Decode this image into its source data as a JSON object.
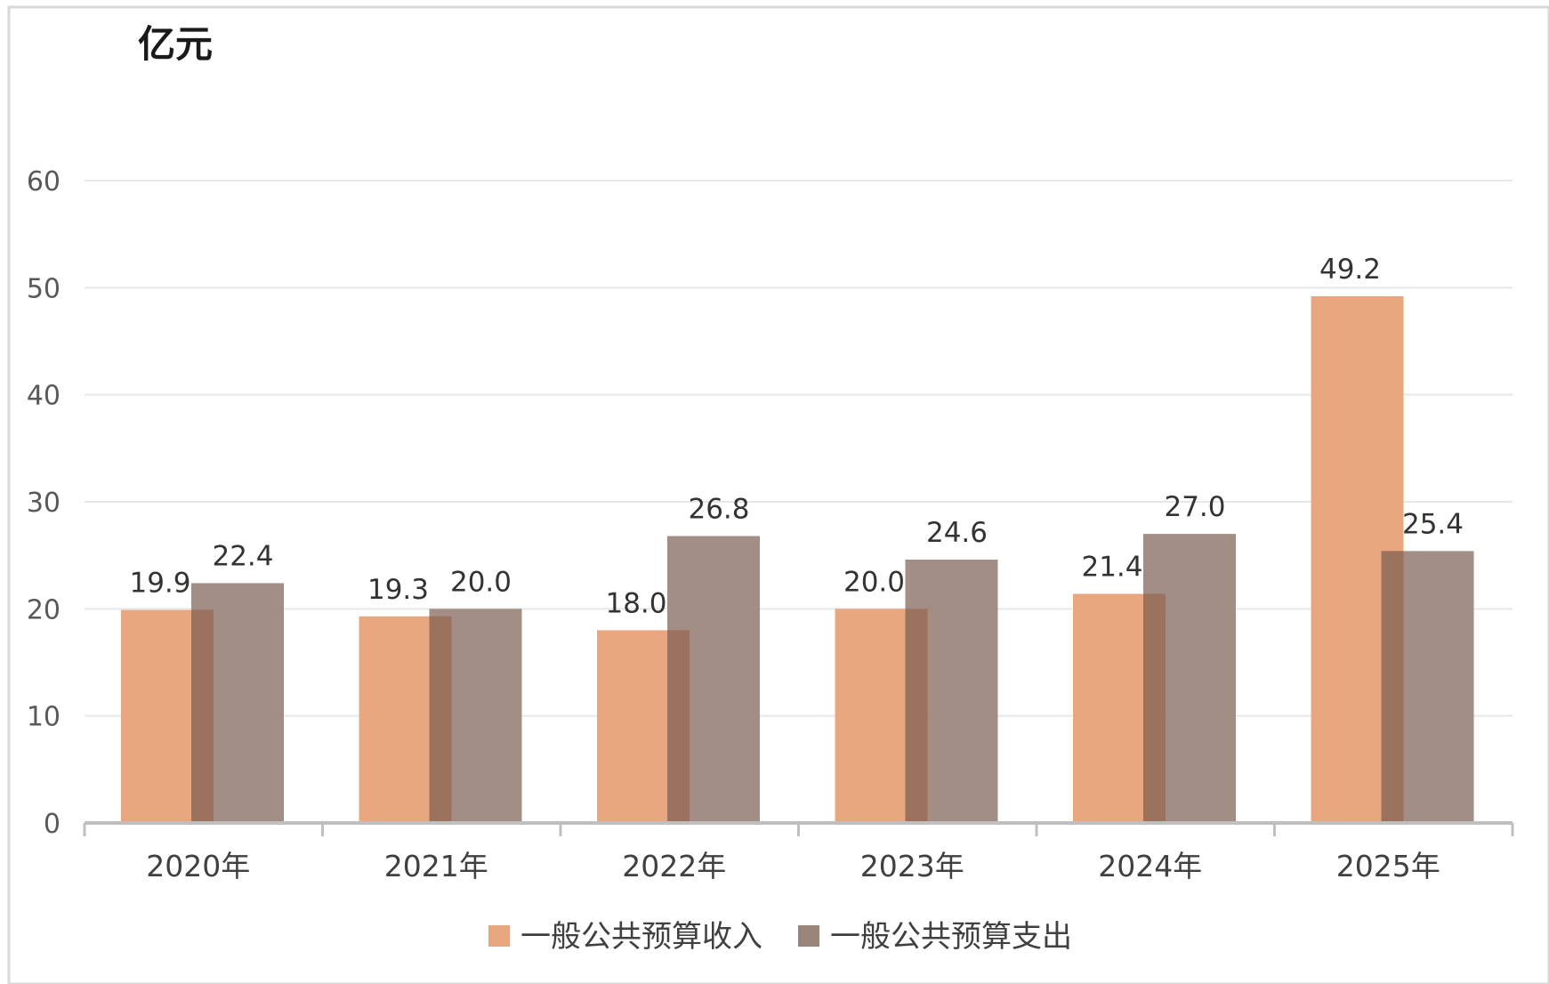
{
  "chart_data": {
    "type": "bar",
    "ylabel": "亿元",
    "ylim": [
      0,
      60
    ],
    "yticks": [
      "0",
      "10",
      "20",
      "30",
      "40",
      "50",
      "60"
    ],
    "ytick_values": [
      0,
      10,
      20,
      30,
      40,
      50,
      60
    ],
    "categories": [
      "2020年",
      "2021年",
      "2022年",
      "2023年",
      "2024年",
      "2025年"
    ],
    "series": [
      {
        "name": "一般公共预算收入",
        "color": "#E9A77F",
        "values": [
          19.9,
          19.3,
          18.0,
          20.0,
          21.4,
          49.2
        ],
        "labels": [
          "19.9",
          "19.3",
          "18.0",
          "20.0",
          "21.4",
          "49.2"
        ]
      },
      {
        "name": "一般公共预算支出",
        "color": "#9A847A",
        "values": [
          22.4,
          20.0,
          26.8,
          24.6,
          27.0,
          25.4
        ],
        "labels": [
          "22.4",
          "20.0",
          "26.8",
          "24.6",
          "27.0",
          "25.4"
        ]
      }
    ],
    "grid": true,
    "legend_position": "bottom"
  }
}
